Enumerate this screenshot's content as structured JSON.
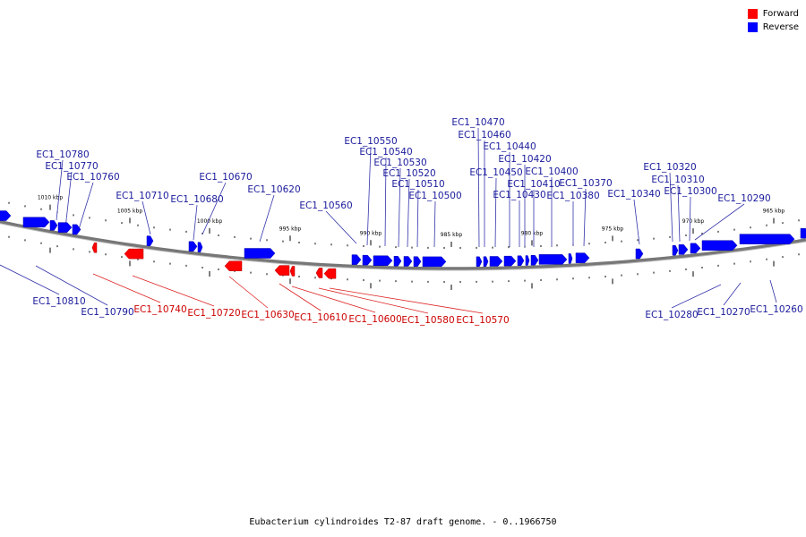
{
  "title": "Eubacterium cylindroides T2-87 draft genome. - 0..1966750",
  "colors": {
    "forward": "#ff0000",
    "reverse": "#0000ff",
    "forward_text": "#cc0000",
    "reverse_text": "#1a1a9c",
    "backbone": "#777777"
  },
  "legend": [
    {
      "key": "forward",
      "label": "Forward"
    },
    {
      "key": "reverse",
      "label": "Reverse"
    }
  ],
  "ticks": [
    "1010 kbp",
    "1005 kbp",
    "1000 kbp",
    "995 kbp",
    "990 kbp",
    "985 kbp",
    "980 kbp",
    "975 kbp",
    "970 kbp",
    "965 kbp"
  ],
  "genes": [
    {
      "name": "EC1_10780",
      "strand": "reverse"
    },
    {
      "name": "EC1_10770",
      "strand": "reverse"
    },
    {
      "name": "EC1_10760",
      "strand": "reverse"
    },
    {
      "name": "EC1_10710",
      "strand": "reverse"
    },
    {
      "name": "EC1_10680",
      "strand": "reverse"
    },
    {
      "name": "EC1_10670",
      "strand": "reverse"
    },
    {
      "name": "EC1_10620",
      "strand": "reverse"
    },
    {
      "name": "EC1_10560",
      "strand": "reverse"
    },
    {
      "name": "EC1_10550",
      "strand": "reverse"
    },
    {
      "name": "EC1_10540",
      "strand": "reverse"
    },
    {
      "name": "EC1_10530",
      "strand": "reverse"
    },
    {
      "name": "EC1_10520",
      "strand": "reverse"
    },
    {
      "name": "EC1_10510",
      "strand": "reverse"
    },
    {
      "name": "EC1_10500",
      "strand": "reverse"
    },
    {
      "name": "EC1_10470",
      "strand": "reverse"
    },
    {
      "name": "EC1_10460",
      "strand": "reverse"
    },
    {
      "name": "EC1_10450",
      "strand": "reverse"
    },
    {
      "name": "EC1_10440",
      "strand": "reverse"
    },
    {
      "name": "EC1_10430",
      "strand": "reverse"
    },
    {
      "name": "EC1_10420",
      "strand": "reverse"
    },
    {
      "name": "EC1_10410",
      "strand": "reverse"
    },
    {
      "name": "EC1_10400",
      "strand": "reverse"
    },
    {
      "name": "EC1_10380",
      "strand": "reverse"
    },
    {
      "name": "EC1_10370",
      "strand": "reverse"
    },
    {
      "name": "EC1_10340",
      "strand": "reverse"
    },
    {
      "name": "EC1_10320",
      "strand": "reverse"
    },
    {
      "name": "EC1_10310",
      "strand": "reverse"
    },
    {
      "name": "EC1_10300",
      "strand": "reverse"
    },
    {
      "name": "EC1_10290",
      "strand": "reverse"
    },
    {
      "name": "EC1_10810",
      "strand": "reverse"
    },
    {
      "name": "EC1_10790",
      "strand": "reverse"
    },
    {
      "name": "EC1_10740",
      "strand": "forward"
    },
    {
      "name": "EC1_10720",
      "strand": "forward"
    },
    {
      "name": "EC1_10630",
      "strand": "forward"
    },
    {
      "name": "EC1_10610",
      "strand": "forward"
    },
    {
      "name": "EC1_10600",
      "strand": "forward"
    },
    {
      "name": "EC1_10580",
      "strand": "forward"
    },
    {
      "name": "EC1_10570",
      "strand": "forward"
    },
    {
      "name": "EC1_10280",
      "strand": "reverse"
    },
    {
      "name": "EC1_10270",
      "strand": "reverse"
    },
    {
      "name": "EC1_10260",
      "strand": "reverse"
    }
  ]
}
